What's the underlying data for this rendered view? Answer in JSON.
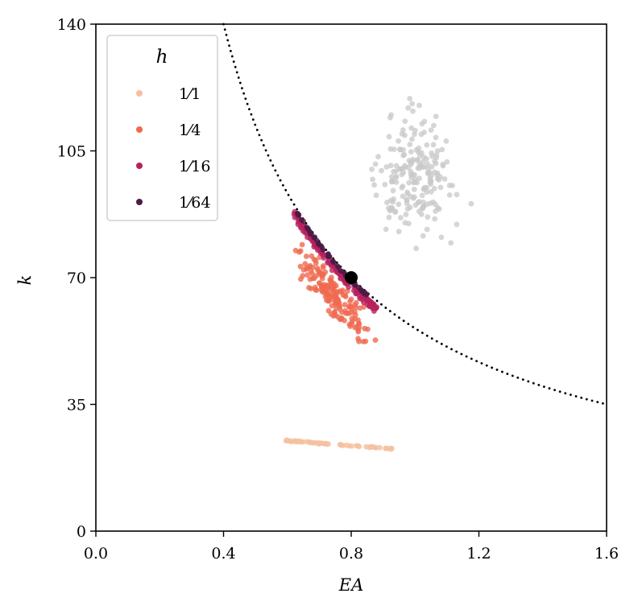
{
  "chart_data": {
    "type": "scatter",
    "xlabel": "EA",
    "ylabel": "k",
    "xlim": [
      0.0,
      1.6
    ],
    "ylim": [
      0,
      140
    ],
    "x_ticks": [
      "0.0",
      "0.4",
      "0.8",
      "1.2",
      "1.6"
    ],
    "y_ticks": [
      "0",
      "35",
      "70",
      "105",
      "140"
    ],
    "legend": {
      "title": "h",
      "placement": "top-left",
      "entries": [
        "1⁄1",
        "1⁄4",
        "1⁄16",
        "1⁄64"
      ]
    },
    "series": [
      {
        "name": "1⁄1",
        "color": "#f5c0a0",
        "x_range": [
          0.59,
          0.94
        ],
        "k_at_start": 25.0,
        "k_at_end": 22.6,
        "count": 60
      },
      {
        "name": "1⁄4",
        "color": "#ef6a50",
        "center": [
          0.74,
          67
        ],
        "count": 170
      },
      {
        "name": "1⁄16",
        "color": "#b8205c",
        "x_range": [
          0.62,
          0.88
        ],
        "count": 150
      },
      {
        "name": "1⁄64",
        "color": "#4e1a47",
        "x_range": [
          0.63,
          0.85
        ],
        "count": 60
      },
      {
        "color": "#c8c8c8",
        "center": [
          1.0,
          98
        ],
        "count": 200
      }
    ],
    "reference_point": {
      "x": 0.8,
      "y": 70,
      "color": "#000000"
    },
    "reference_curve": {
      "equation": "k = 56 / EA",
      "style": "dotted",
      "color": "#000000"
    }
  }
}
